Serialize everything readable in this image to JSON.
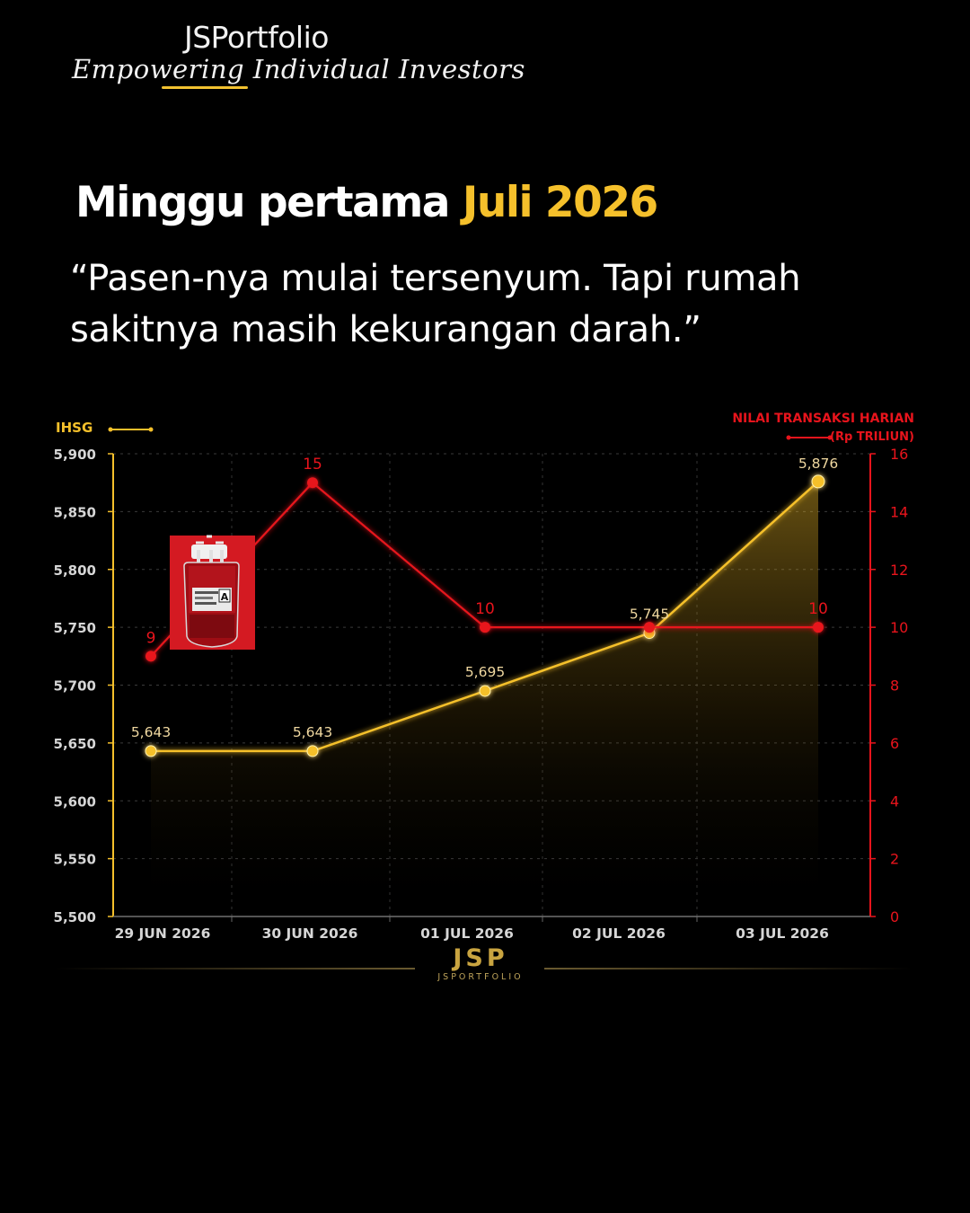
{
  "brand": {
    "name": "JSPortfolio",
    "tagline": "Empowering Individual Investors"
  },
  "headline": {
    "part1": "Minggu pertama ",
    "part2": "Juli 2026"
  },
  "quote": "“Pasen-nya mulai tersenyum. Tapi rumah sakitnya masih kekurangan darah.”",
  "colors": {
    "ihsg": "#f5c02b",
    "transaction": "#e8141c",
    "background": "#000000"
  },
  "icons": {
    "blood_bag": "blood-bag-icon"
  },
  "chart_data": {
    "type": "line",
    "categories": [
      "29 JUN 2026",
      "30 JUN 2026",
      "01 JUL 2026",
      "02 JUL 2026",
      "03 JUL 2026"
    ],
    "left_axis": {
      "label": "IHSG",
      "ylim": [
        5500,
        5900
      ],
      "ticks": [
        "5,500",
        "5,550",
        "5,600",
        "5,650",
        "5,700",
        "5,750",
        "5,800",
        "5,850",
        "5,900"
      ]
    },
    "right_axis": {
      "label": "NILAI TRANSAKSI HARIAN",
      "unit": "(Rp TRILIUN)",
      "ylim": [
        0,
        16
      ],
      "ticks": [
        "0",
        "2",
        "4",
        "6",
        "8",
        "10",
        "12",
        "14",
        "16"
      ]
    },
    "series": [
      {
        "name": "IHSG",
        "axis": "left",
        "values": [
          5643,
          5643,
          5695,
          5745,
          5876
        ],
        "labels": [
          "5,643",
          "5,643",
          "5,695",
          "5,745",
          "5,876"
        ]
      },
      {
        "name": "NILAI TRANSAKSI HARIAN",
        "axis": "right",
        "values": [
          9,
          15,
          10,
          10,
          10
        ],
        "labels": [
          "9",
          "15",
          "10",
          "",
          "10"
        ]
      }
    ],
    "grid": true,
    "legend": "top-left and top-right"
  },
  "footer": {
    "mark": "JSP",
    "sub": "JSPORTFOLIO"
  }
}
